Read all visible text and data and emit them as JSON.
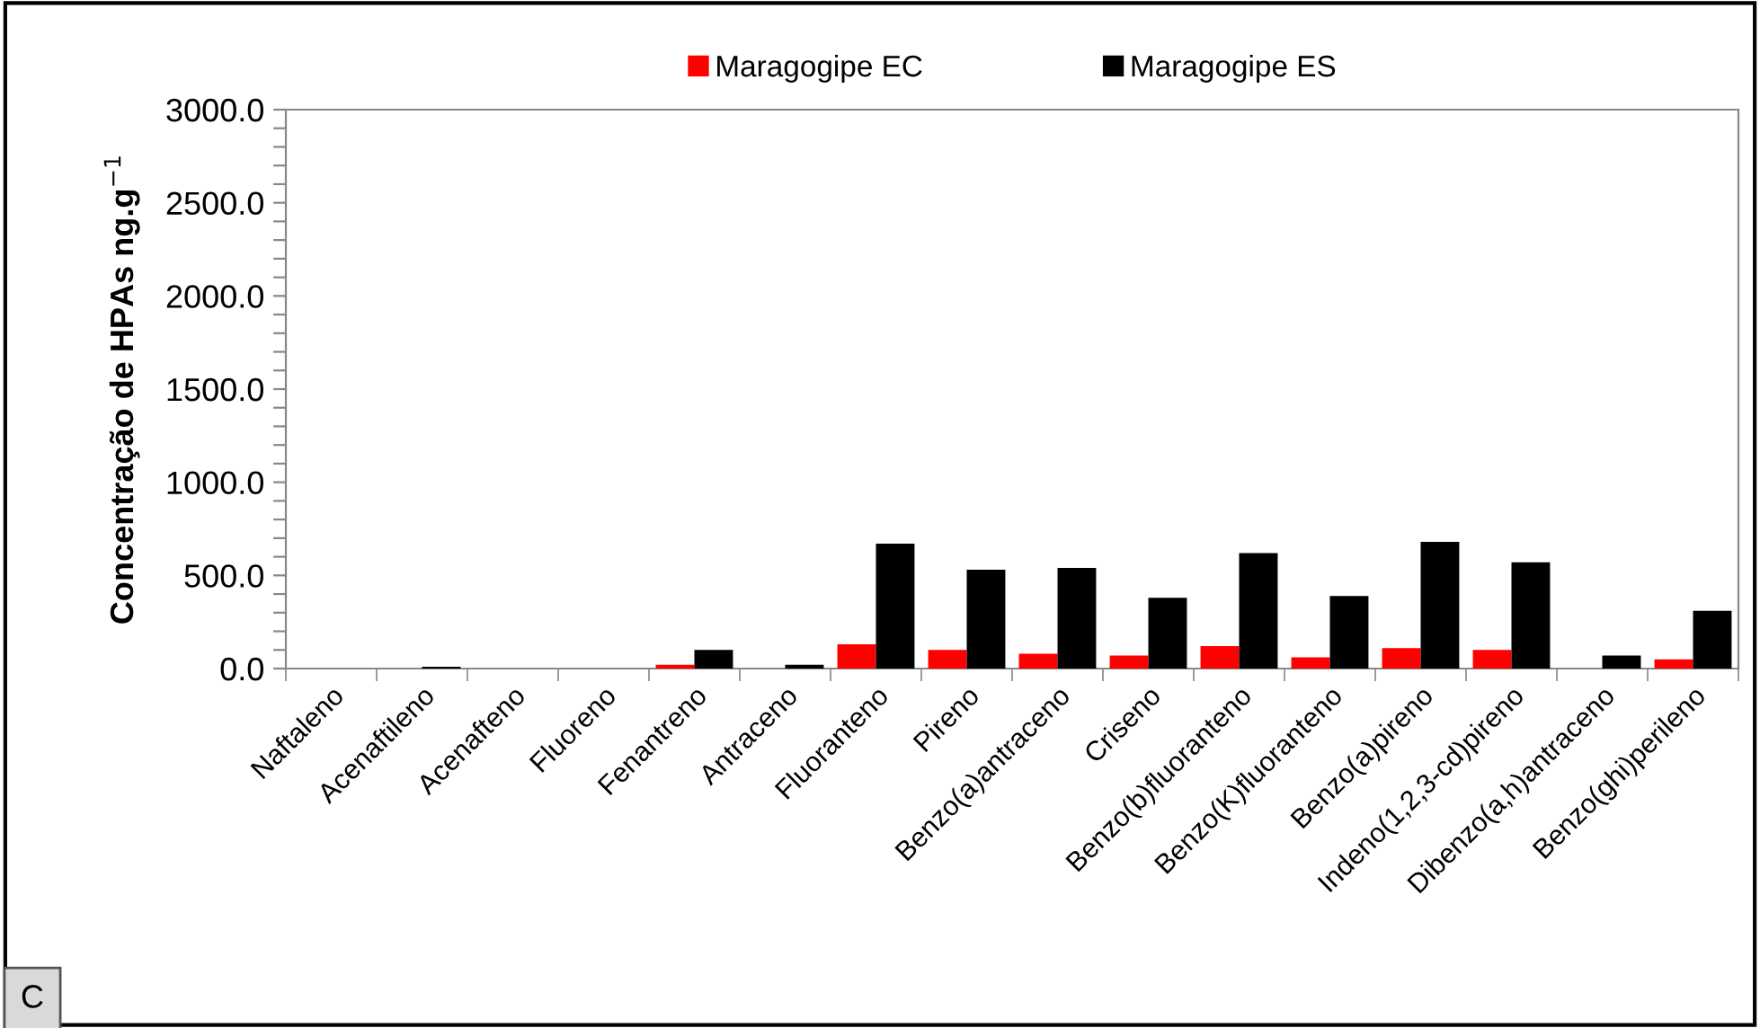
{
  "chart_data": {
    "type": "bar",
    "ylabel": "Concentração de HPAs ng.g$^{−1}$",
    "categories": [
      "Naftaleno",
      "Acenaftileno",
      "Acenafteno",
      "Fluoreno",
      "Fenantreno",
      "Antraceno",
      "Fluoranteno",
      "Pireno",
      "Benzo(a)antraceno",
      "Criseno",
      "Benzo(b)fluoranteno",
      "Benzo(K)fluoranteno",
      "Benzo(a)pireno",
      "Indeno(1,2,3-cd)pireno",
      "Dibenzo(a,h)antraceno",
      "Benzo(ghi)perileno"
    ],
    "series": [
      {
        "name": "Maragogipe EC",
        "color": "#ff0000",
        "values": [
          0,
          0,
          0,
          0,
          20,
          0,
          130,
          100,
          80,
          70,
          120,
          60,
          110,
          100,
          0,
          50
        ]
      },
      {
        "name": "Maragogipe ES",
        "color": "#000000",
        "values": [
          0,
          10,
          0,
          null,
          100,
          20,
          670,
          530,
          540,
          380,
          620,
          390,
          680,
          570,
          70,
          310
        ]
      }
    ],
    "ylim": [
      0,
      3000
    ],
    "yticks": [
      {
        "value": 0,
        "label": "0.0"
      },
      {
        "value": 100,
        "label": null
      },
      {
        "value": 200,
        "label": null
      },
      {
        "value": 300,
        "label": null
      },
      {
        "value": 400,
        "label": null
      },
      {
        "value": 500,
        "label": "500.0"
      },
      {
        "value": 600,
        "label": null
      },
      {
        "value": 700,
        "label": null
      },
      {
        "value": 800,
        "label": null
      },
      {
        "value": 900,
        "label": null
      },
      {
        "value": 1000,
        "label": "1000.0"
      },
      {
        "value": 1100,
        "label": null
      },
      {
        "value": 1200,
        "label": null
      },
      {
        "value": 1300,
        "label": null
      },
      {
        "value": 1400,
        "label": null
      },
      {
        "value": 1500,
        "label": "1500.0"
      },
      {
        "value": 1600,
        "label": null
      },
      {
        "value": 1700,
        "label": null
      },
      {
        "value": 1800,
        "label": null
      },
      {
        "value": 1900,
        "label": null
      },
      {
        "value": 2000,
        "label": "2000.0"
      },
      {
        "value": 2100,
        "label": null
      },
      {
        "value": 2200,
        "label": null
      },
      {
        "value": 2300,
        "label": null
      },
      {
        "value": 2400,
        "label": null
      },
      {
        "value": 2500,
        "label": "2500.0"
      },
      {
        "value": 2600,
        "label": null
      },
      {
        "value": 2700,
        "label": null
      },
      {
        "value": 2800,
        "label": null
      },
      {
        "value": 2900,
        "label": null
      },
      {
        "value": 3000,
        "label": "3000.0"
      }
    ],
    "legend": "top",
    "grid": false,
    "annotations": [
      "C"
    ]
  }
}
